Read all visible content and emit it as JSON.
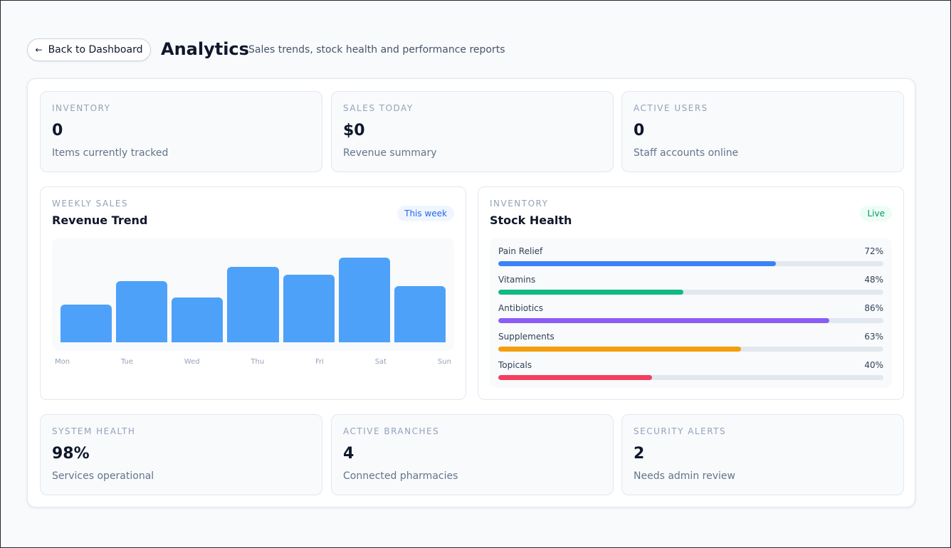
{
  "header": {
    "back_button": "Back to Dashboard",
    "title": "Analytics",
    "subtitle": "Sales trends, stock health and performance reports"
  },
  "stats_top": [
    {
      "label": "INVENTORY",
      "value": "0",
      "description": "Items currently tracked"
    },
    {
      "label": "SALES TODAY",
      "value": "$0",
      "description": "Revenue summary"
    },
    {
      "label": "ACTIVE USERS",
      "value": "0",
      "description": "Staff accounts online"
    }
  ],
  "weekly_sales": {
    "type": "bar",
    "eyebrow": "WEEKLY SALES",
    "title": "Revenue Trend",
    "badge": "This week",
    "categories": [
      "Mon",
      "Tue",
      "Wed",
      "Thu",
      "Fri",
      "Sat",
      "Sun"
    ],
    "values": [
      53,
      86,
      63,
      106,
      95,
      119,
      79
    ],
    "color": "#4ea1f9"
  },
  "stock_health": {
    "type": "bar",
    "orientation": "horizontal",
    "eyebrow": "INVENTORY",
    "title": "Stock Health",
    "badge": "Live",
    "xlim": [
      0,
      100
    ],
    "categories": [
      "Pain Relief",
      "Vitamins",
      "Antibiotics",
      "Supplements",
      "Topicals"
    ],
    "values": [
      72,
      48,
      86,
      63,
      40
    ],
    "value_labels": [
      "72%",
      "48%",
      "86%",
      "63%",
      "40%"
    ],
    "colors": [
      "#3b82f6",
      "#10b981",
      "#8b5cf6",
      "#f59e0b",
      "#f43f5e"
    ]
  },
  "stats_bottom": [
    {
      "label": "SYSTEM HEALTH",
      "value": "98%",
      "description": "Services operational"
    },
    {
      "label": "ACTIVE BRANCHES",
      "value": "4",
      "description": "Connected pharmacies"
    },
    {
      "label": "SECURITY ALERTS",
      "value": "2",
      "description": "Needs admin review"
    }
  ]
}
